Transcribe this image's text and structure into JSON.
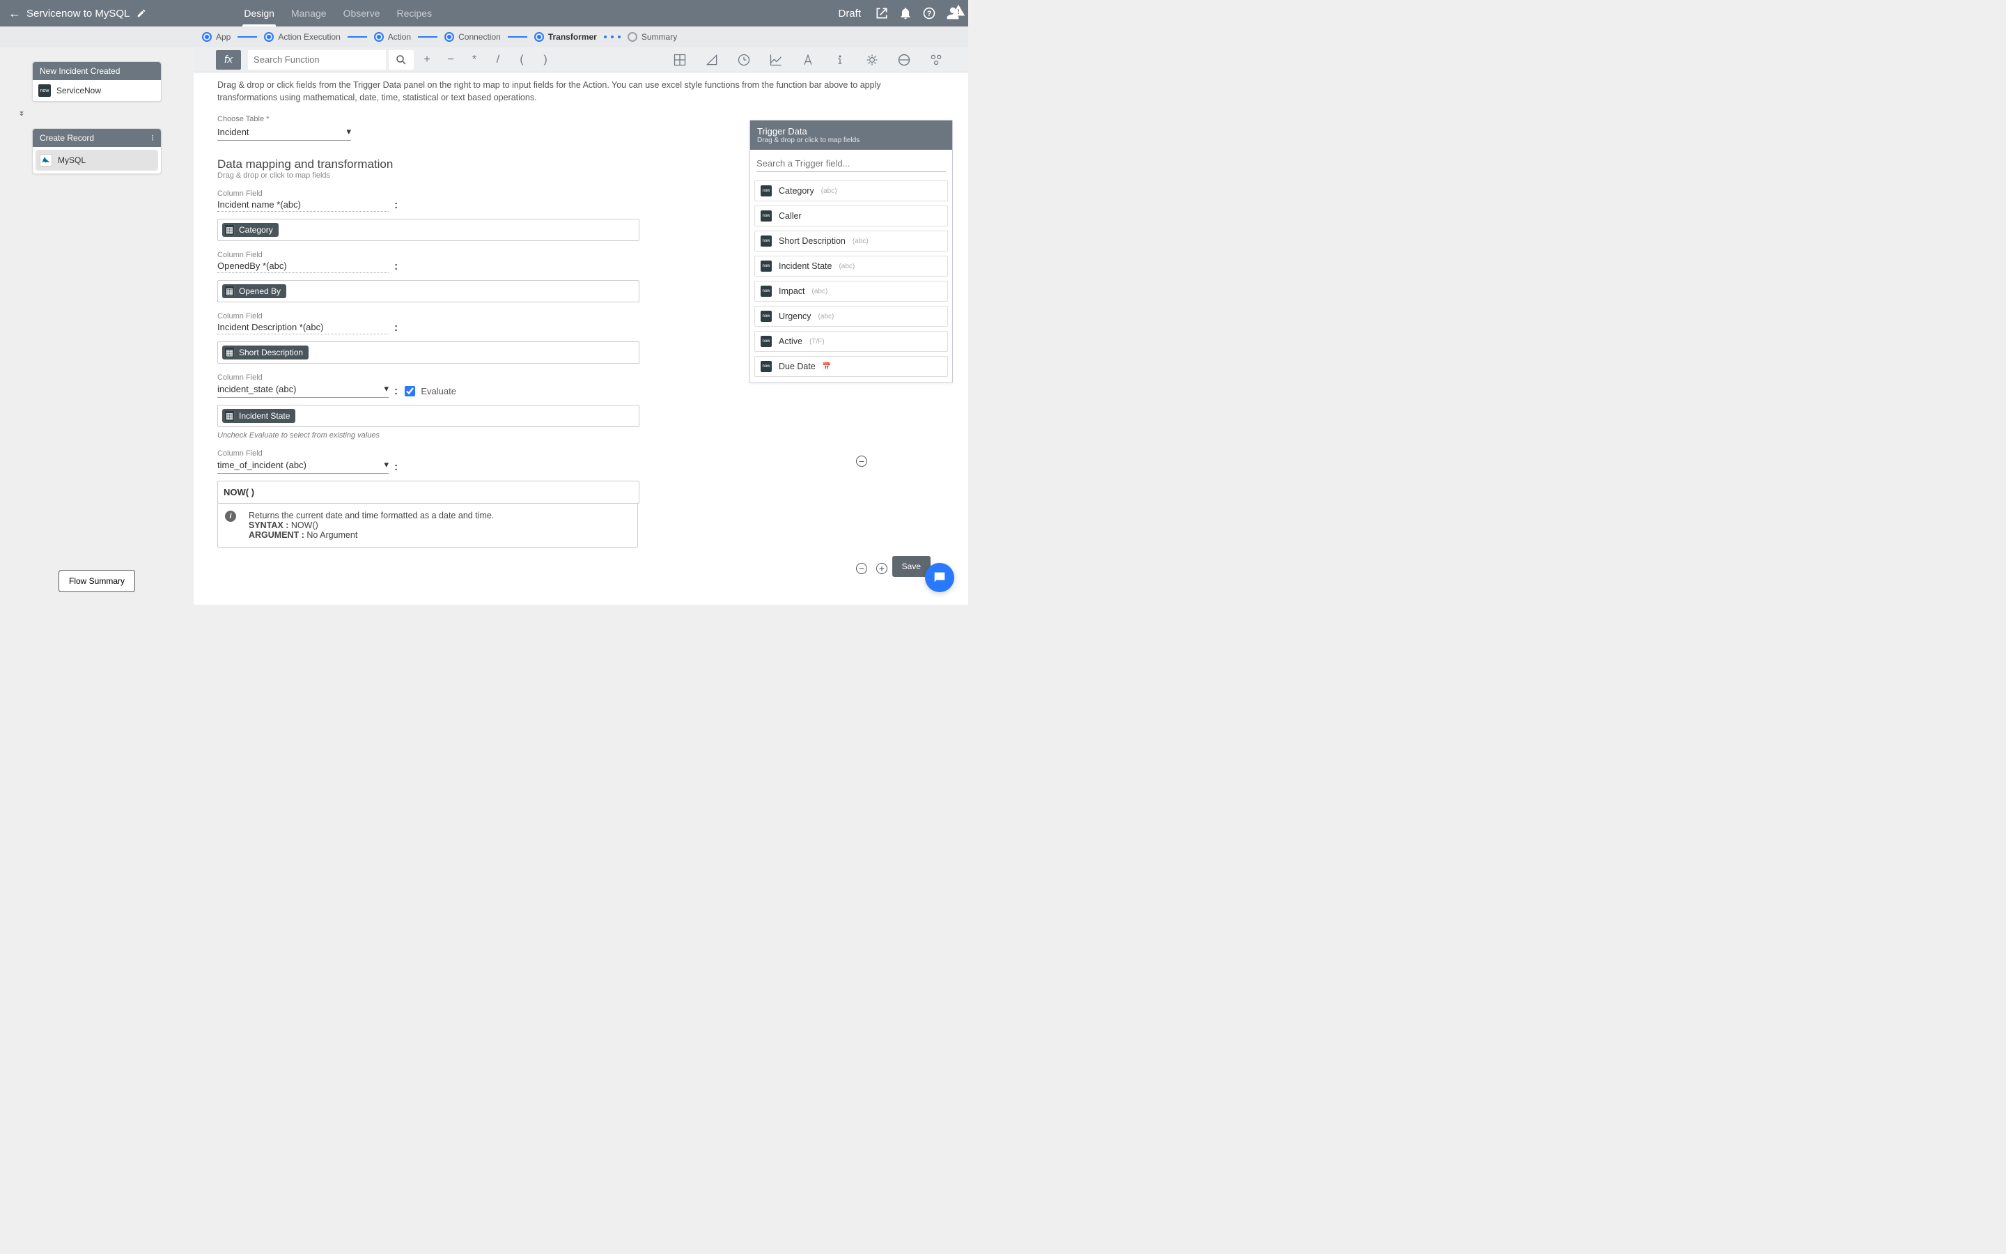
{
  "header": {
    "title": "Servicenow to MySQL",
    "tabs": [
      "Design",
      "Manage",
      "Observe",
      "Recipes"
    ],
    "active_tab": 0,
    "status": "Draft"
  },
  "steps": {
    "items": [
      "App",
      "Action Execution",
      "Action",
      "Connection",
      "Transformer",
      "Summary"
    ],
    "current": 4
  },
  "sidebar": {
    "card1": {
      "title": "New Incident Created",
      "connector": "ServiceNow"
    },
    "card2": {
      "title": "Create Record",
      "connector": "MySQL"
    },
    "summary_btn": "Flow Summary"
  },
  "funcbar": {
    "search_placeholder": "Search Function",
    "ops": [
      "+",
      "−",
      "*",
      "/",
      "(",
      ")"
    ]
  },
  "content": {
    "hint": "Drag & drop or click fields from the Trigger Data panel on the right to map to input fields for the Action. You can use excel style functions from the function bar above to apply transformations using mathematical, date, time, statistical or text based operations.",
    "choose_table_label": "Choose Table *",
    "choose_table_value": "Incident",
    "section_title": "Data mapping and transformation",
    "section_sub": "Drag & drop or click to map fields",
    "column_field_label": "Column Field",
    "fields": [
      {
        "name": "Incident name *(abc)",
        "chip": "Category"
      },
      {
        "name": "OpenedBy *(abc)",
        "chip": "Opened By"
      },
      {
        "name": "Incident Description *(abc)",
        "chip": "Short Description"
      }
    ],
    "field_state": {
      "name": "incident_state (abc)",
      "chip": "Incident State",
      "evaluate": "Evaluate",
      "note": "Uncheck Evaluate to select from existing values"
    },
    "field_time": {
      "name": "time_of_incident (abc)",
      "formula": "NOW( )"
    },
    "help": {
      "line1": "Returns the current date and time formatted as a date and time.",
      "syntax_label": "SYNTAX :",
      "syntax_val": "NOW()",
      "arg_label": "ARGUMENT :",
      "arg_val": "No Argument"
    }
  },
  "trigger": {
    "title": "Trigger Data",
    "sub": "Drag & drop or click to map fields",
    "search_placeholder": "Search a Trigger field...",
    "items": [
      {
        "name": "Category",
        "type": "(abc)"
      },
      {
        "name": "Caller",
        "type": ""
      },
      {
        "name": "Short Description",
        "type": "(abc)"
      },
      {
        "name": "Incident State",
        "type": "(abc)"
      },
      {
        "name": "Impact",
        "type": "(abc)"
      },
      {
        "name": "Urgency",
        "type": "(abc)"
      },
      {
        "name": "Active",
        "type": "(T/F)"
      },
      {
        "name": "Due Date",
        "type": "📅"
      }
    ]
  },
  "save": "Save"
}
